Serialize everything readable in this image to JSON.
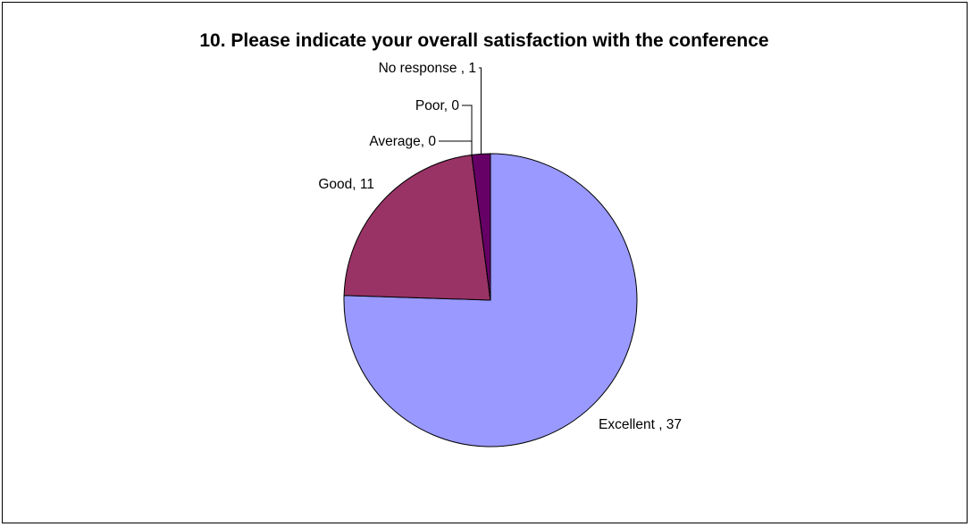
{
  "chart_data": {
    "type": "pie",
    "title": "10. Please indicate your overall satisfaction with the conference",
    "slices": [
      {
        "label": "Excellent",
        "value": 37,
        "text": "Excellent , 37",
        "color": "#9999ff"
      },
      {
        "label": "Good",
        "value": 11,
        "text": "Good, 11",
        "color": "#993366"
      },
      {
        "label": "Average",
        "value": 0,
        "text": "Average, 0",
        "color": "#ffffcc"
      },
      {
        "label": "Poor",
        "value": 0,
        "text": "Poor, 0",
        "color": "#ccffff"
      },
      {
        "label": "No response",
        "value": 1,
        "text": "No response , 1",
        "color": "#660066"
      }
    ],
    "legend": "none"
  }
}
